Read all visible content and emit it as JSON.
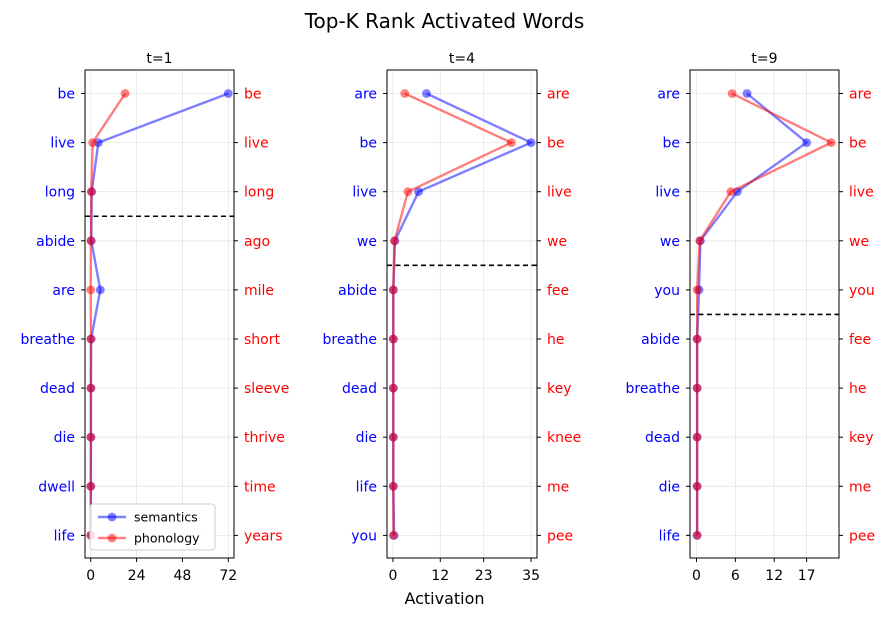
{
  "title": "Top-K Rank Activated Words",
  "xlabel": "Activation",
  "colors": {
    "semantics": "#0000ff",
    "phonology": "#ff0000",
    "left_label": "#0000ff",
    "right_label": "#ff0000"
  },
  "legend": {
    "semantics": "semantics",
    "phonology": "phonology"
  },
  "chart_data": [
    {
      "type": "line",
      "title": "t=1",
      "left_labels": [
        "be",
        "live",
        "long",
        "abide",
        "are",
        "breathe",
        "dead",
        "die",
        "dwell",
        "life"
      ],
      "right_labels": [
        "be",
        "live",
        "long",
        "ago",
        "mile",
        "short",
        "sleeve",
        "thrive",
        "time",
        "years"
      ],
      "xticks": [
        "0",
        "24",
        "48",
        "72"
      ],
      "xlim": [
        -3,
        75
      ],
      "cutoff_after_rank": 3,
      "series": [
        {
          "name": "semantics",
          "values": [
            72,
            4,
            0.5,
            0.3,
            5,
            0.2,
            0.1,
            0.1,
            0.1,
            0.1
          ]
        },
        {
          "name": "phonology",
          "values": [
            18,
            1,
            0.3,
            0.1,
            0,
            0.1,
            0.1,
            0.1,
            0,
            0
          ]
        }
      ],
      "legend_position": "lower-left"
    },
    {
      "type": "line",
      "title": "t=4",
      "left_labels": [
        "are",
        "be",
        "live",
        "we",
        "abide",
        "breathe",
        "dead",
        "die",
        "life",
        "you"
      ],
      "right_labels": [
        "are",
        "be",
        "live",
        "we",
        "fee",
        "he",
        "key",
        "knee",
        "me",
        "pee"
      ],
      "xticks": [
        "0",
        "12",
        "23",
        "35"
      ],
      "xlim": [
        -1.5,
        36.5
      ],
      "cutoff_after_rank": 4,
      "series": [
        {
          "name": "semantics",
          "values": [
            8.5,
            35,
            6.5,
            0.5,
            0.1,
            0.1,
            0.1,
            0.1,
            0.1,
            0.3
          ]
        },
        {
          "name": "phonology",
          "values": [
            3,
            30,
            3.8,
            0.4,
            0.1,
            0.1,
            0.1,
            0.1,
            0.1,
            0.1
          ]
        }
      ]
    },
    {
      "type": "line",
      "title": "t=9",
      "left_labels": [
        "are",
        "be",
        "live",
        "we",
        "you",
        "abide",
        "breathe",
        "dead",
        "die",
        "life"
      ],
      "right_labels": [
        "are",
        "be",
        "live",
        "we",
        "you",
        "fee",
        "he",
        "key",
        "me",
        "pee"
      ],
      "xticks": [
        "0",
        "6",
        "12",
        "17"
      ],
      "xlim": [
        -1,
        22
      ],
      "cutoff_after_rank": 5,
      "series": [
        {
          "name": "semantics",
          "values": [
            7.8,
            17,
            6.3,
            0.6,
            0.4,
            0.1,
            0.1,
            0.1,
            0.1,
            0.1
          ]
        },
        {
          "name": "phonology",
          "values": [
            5.5,
            20.8,
            5.3,
            0.5,
            0.1,
            0.1,
            0.1,
            0.1,
            0.1,
            0.1
          ]
        }
      ]
    }
  ]
}
